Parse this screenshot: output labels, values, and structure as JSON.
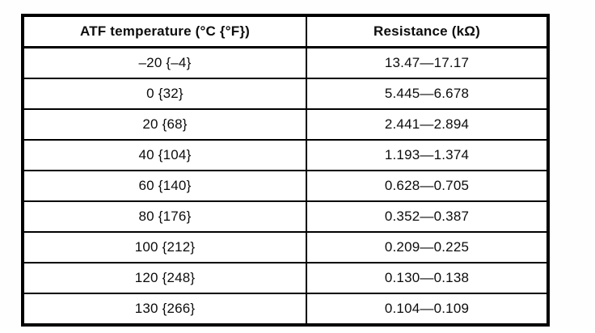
{
  "table": {
    "header": {
      "temperature_label": "ATF temperature (°C {°F})",
      "resistance_label": "Resistance (kΩ)"
    },
    "rows": [
      {
        "temperature": "–20 {–4}",
        "resistance": "13.47—17.17"
      },
      {
        "temperature": "0 {32}",
        "resistance": "5.445—6.678"
      },
      {
        "temperature": "20 {68}",
        "resistance": "2.441—2.894"
      },
      {
        "temperature": "40 {104}",
        "resistance": "1.193—1.374"
      },
      {
        "temperature": "60 {140}",
        "resistance": "0.628—0.705"
      },
      {
        "temperature": "80 {176}",
        "resistance": "0.352—0.387"
      },
      {
        "temperature": "100 {212}",
        "resistance": "0.209—0.225"
      },
      {
        "temperature": "120 {248}",
        "resistance": "0.130—0.138"
      },
      {
        "temperature": "130 {266}",
        "resistance": "0.104—0.109"
      }
    ]
  }
}
